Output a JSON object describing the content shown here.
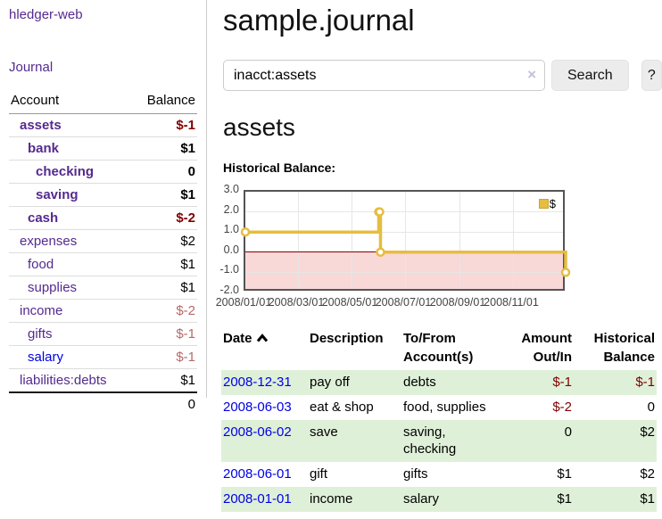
{
  "app": {
    "title": "hledger-web"
  },
  "sidebar": {
    "journal_link": "Journal",
    "accounts_table": {
      "headers": {
        "account": "Account",
        "balance": "Balance"
      },
      "rows": [
        {
          "name": "assets",
          "level": 1,
          "bold": true,
          "color": "purple",
          "balance": "$-1",
          "balance_class": "neg-strong"
        },
        {
          "name": "bank",
          "level": 2,
          "bold": true,
          "color": "purple",
          "balance": "$1",
          "balance_class": ""
        },
        {
          "name": "checking",
          "level": 3,
          "bold": true,
          "color": "purple",
          "balance": "0",
          "balance_class": ""
        },
        {
          "name": "saving",
          "level": 3,
          "bold": true,
          "color": "purple",
          "balance": "$1",
          "balance_class": ""
        },
        {
          "name": "cash",
          "level": 2,
          "bold": true,
          "color": "purple",
          "balance": "$-2",
          "balance_class": "neg-strong"
        },
        {
          "name": "expenses",
          "level": 1,
          "bold": false,
          "color": "purple",
          "balance": "$2",
          "balance_class": ""
        },
        {
          "name": "food",
          "level": 2,
          "bold": false,
          "color": "purple",
          "balance": "$1",
          "balance_class": ""
        },
        {
          "name": "supplies",
          "level": 2,
          "bold": false,
          "color": "purple",
          "balance": "$1",
          "balance_class": ""
        },
        {
          "name": "income",
          "level": 1,
          "bold": false,
          "color": "purple",
          "balance": "$-2",
          "balance_class": "neg-soft"
        },
        {
          "name": "gifts",
          "level": 2,
          "bold": false,
          "color": "purple",
          "balance": "$-1",
          "balance_class": "neg-soft"
        },
        {
          "name": "salary",
          "level": 2,
          "bold": false,
          "color": "blue",
          "balance": "$-1",
          "balance_class": "neg-soft"
        },
        {
          "name": "liabilities:debts",
          "level": 1,
          "bold": false,
          "color": "purple",
          "balance": "$1",
          "balance_class": ""
        }
      ],
      "total": "0"
    }
  },
  "main": {
    "title": "sample.journal",
    "search": {
      "value": "inacct:assets",
      "clear_icon": "×",
      "search_label": "Search",
      "help_label": "?"
    },
    "account_heading": "assets",
    "register": {
      "headers": {
        "date": "Date",
        "description": "Description",
        "accounts": "To/From Account(s)",
        "amount": "Amount Out/In",
        "balance": "Historical Balance"
      },
      "rows": [
        {
          "date": "2008-12-31",
          "description": "pay off",
          "accounts": "debts",
          "amount": "$-1",
          "amount_class": "neg-strong",
          "balance": "$-1",
          "balance_class": "neg-strong"
        },
        {
          "date": "2008-06-03",
          "description": "eat & shop",
          "accounts": "food, supplies",
          "amount": "$-2",
          "amount_class": "neg-strong",
          "balance": "0",
          "balance_class": ""
        },
        {
          "date": "2008-06-02",
          "description": "save",
          "accounts": "saving, checking",
          "amount": "0",
          "amount_class": "",
          "balance": "$2",
          "balance_class": ""
        },
        {
          "date": "2008-06-01",
          "description": "gift",
          "accounts": "gifts",
          "amount": "$1",
          "amount_class": "",
          "balance": "$2",
          "balance_class": ""
        },
        {
          "date": "2008-01-01",
          "description": "income",
          "accounts": "salary",
          "amount": "$1",
          "amount_class": "",
          "balance": "$1",
          "balance_class": ""
        }
      ]
    }
  },
  "chart_data": {
    "type": "line",
    "step": true,
    "title": "Historical Balance:",
    "series": [
      {
        "name": "$",
        "x": [
          "2008-01-01",
          "2008-06-01",
          "2008-06-02",
          "2008-06-03",
          "2008-12-31"
        ],
        "y": [
          1,
          2,
          2,
          0,
          -1
        ]
      }
    ],
    "ylim": [
      -2,
      3
    ],
    "yticks": [
      "3.0",
      "2.0",
      "1.0",
      "0.0",
      "-1.0",
      "-2.0"
    ],
    "xticks": [
      {
        "label": "2008/01/01",
        "date": "2008-01-01"
      },
      {
        "label": "2008/03/01",
        "date": "2008-03-01"
      },
      {
        "label": "2008/05/01",
        "date": "2008-05-01"
      },
      {
        "label": "2008/07/01",
        "date": "2008-07-01"
      },
      {
        "label": "2008/09/01",
        "date": "2008-09-01"
      },
      {
        "label": "2008/11/01",
        "date": "2008-11-01"
      }
    ],
    "legend_position": "top-right",
    "grid": true,
    "colors": {
      "line": "#e6bd41",
      "marker_fill": "#ffffff",
      "negative_region": "#f9d8d8",
      "zero_line": "#8b0000",
      "border": "#545454",
      "gridline": "#e6e6e6"
    }
  }
}
